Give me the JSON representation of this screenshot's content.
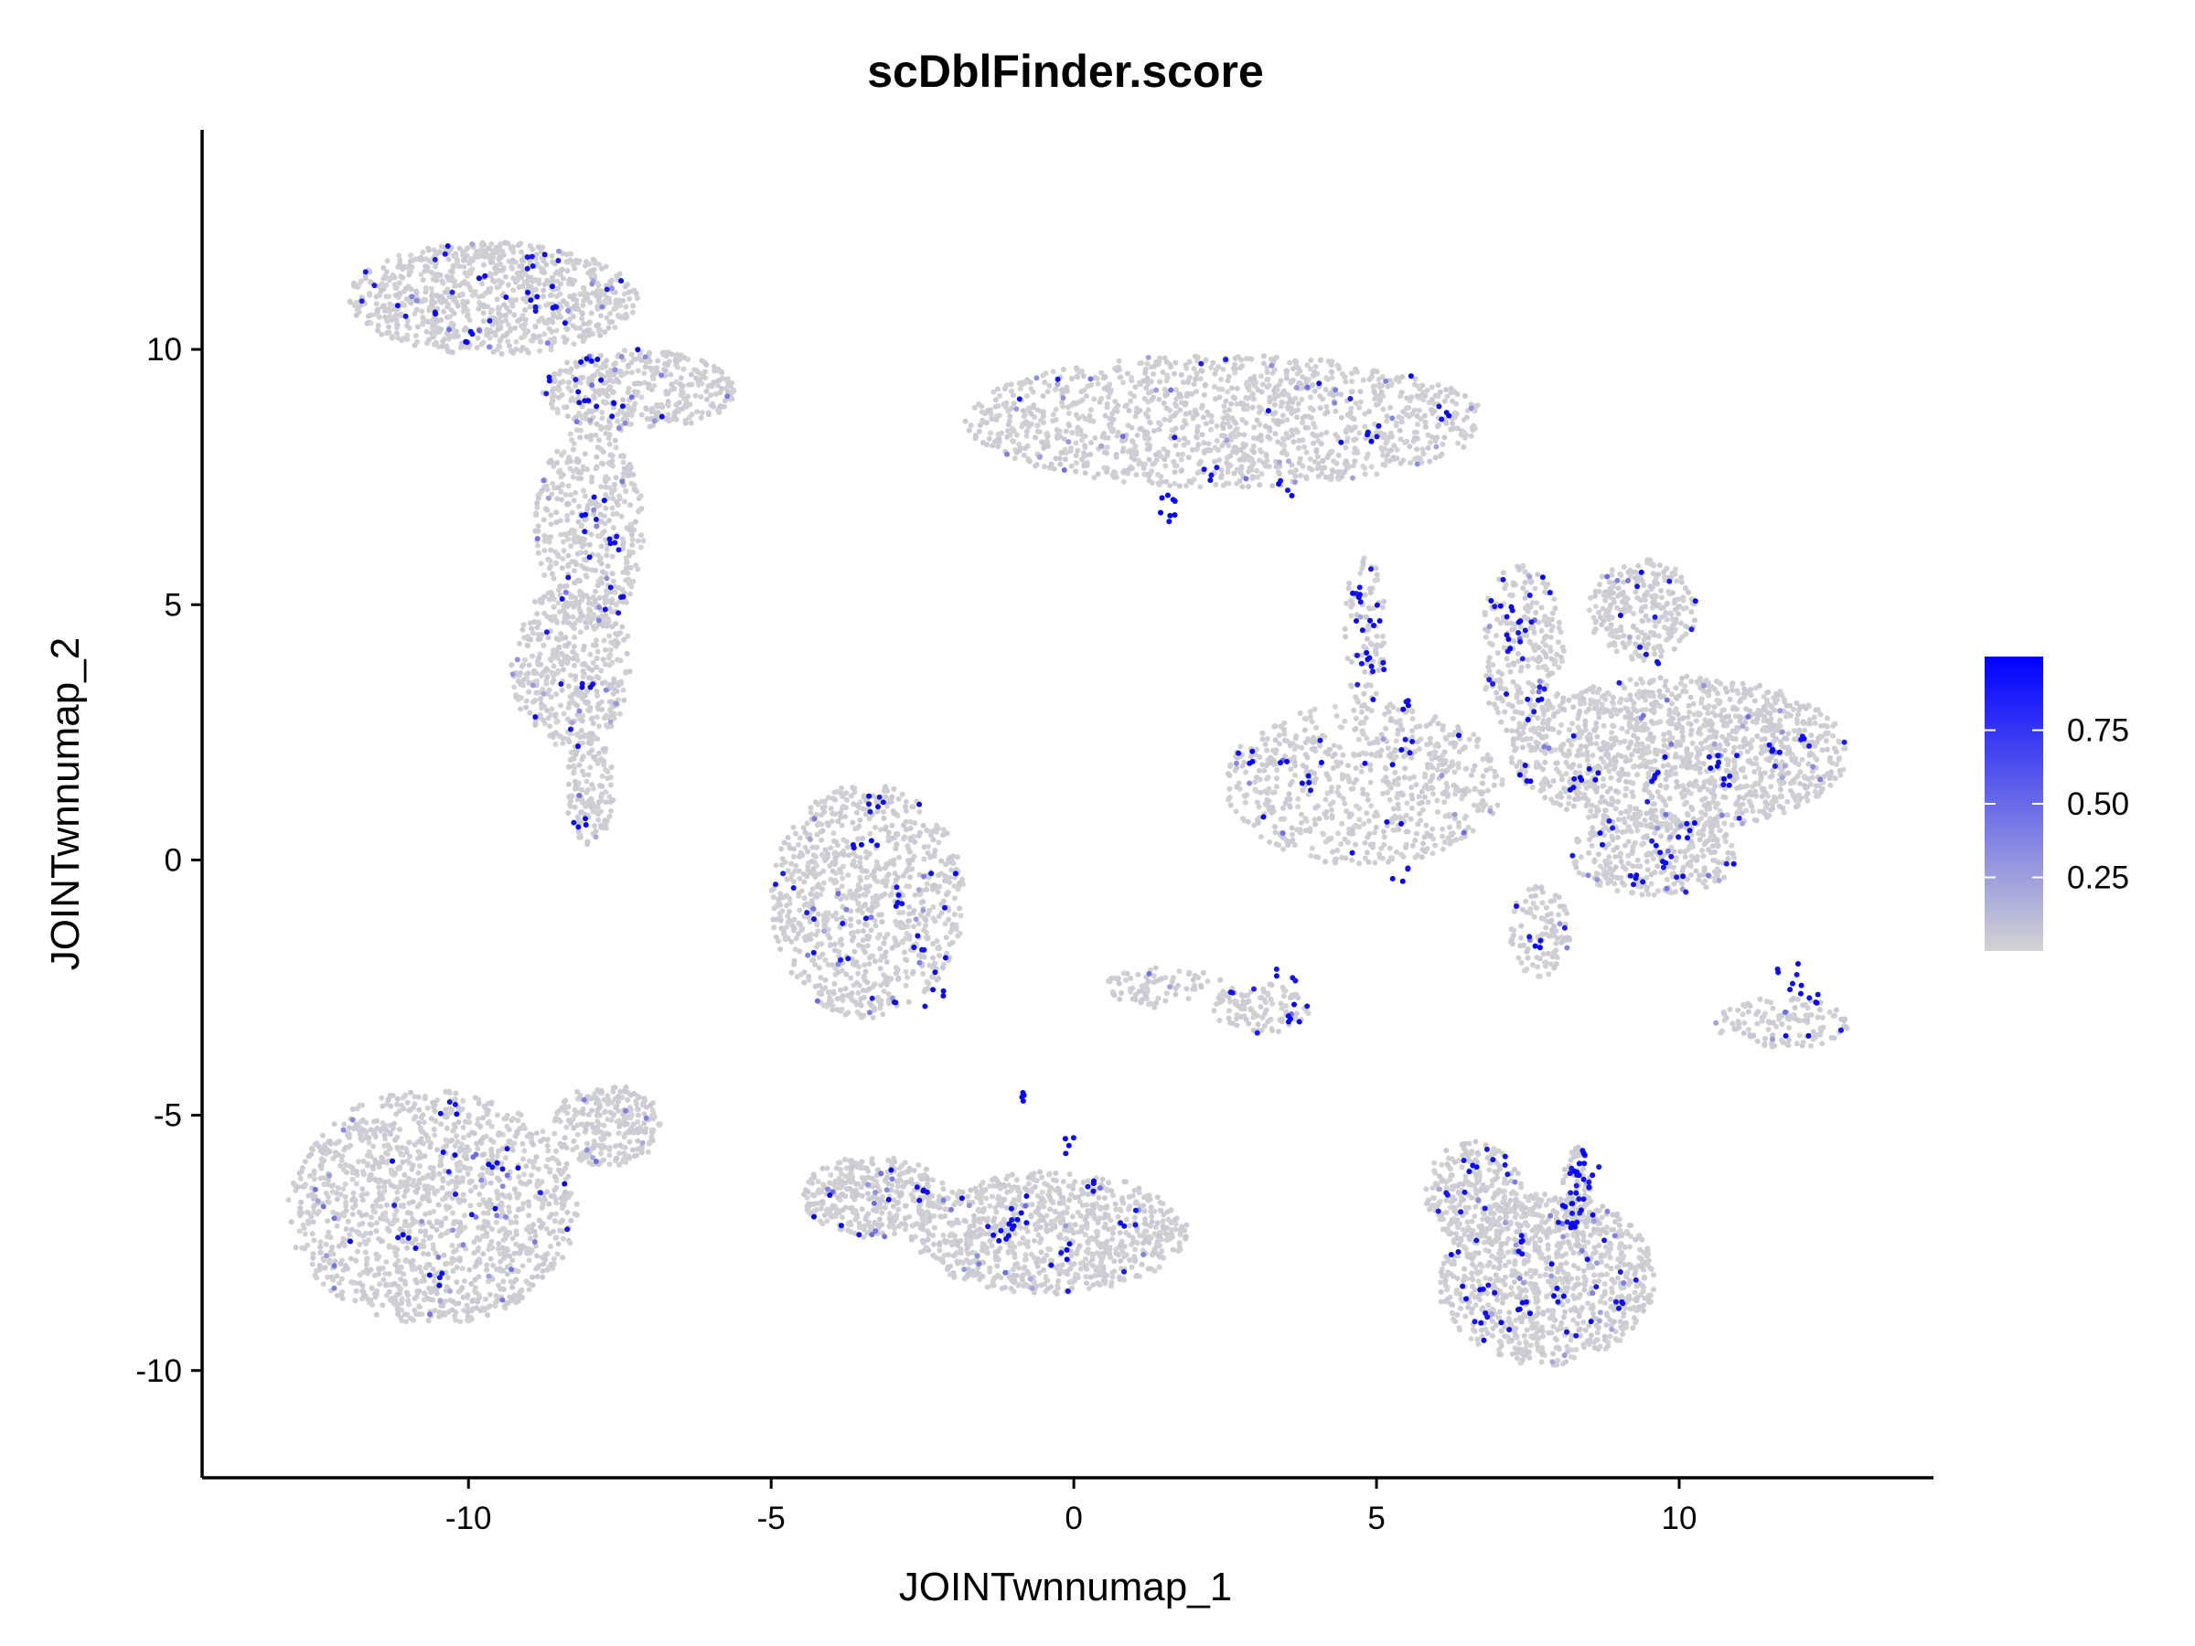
{
  "chart_data": {
    "type": "scatter",
    "title": "scDblFinder.score",
    "xlabel": "JOINTwnnumap_1",
    "ylabel": "JOINTwnnumap_2",
    "xlim": [
      -14.4,
      14.2
    ],
    "ylim": [
      -12.1,
      14.3
    ],
    "x_ticks": [
      -10,
      -5,
      0,
      5,
      10
    ],
    "x_tick_labels": [
      "-10",
      "-5",
      "0",
      "5",
      "10"
    ],
    "y_ticks": [
      -10,
      -5,
      0,
      5,
      10
    ],
    "y_tick_labels": [
      "-10",
      "-5",
      "0",
      "5",
      "10"
    ],
    "grid": false,
    "legend": {
      "type": "colorbar",
      "placement": "right",
      "min": 0.0,
      "max": 1.0,
      "low_color": "#d3d3d3",
      "high_color": "#0000ff",
      "ticks": [
        0.25,
        0.5,
        0.75
      ],
      "tick_labels": [
        "0.25",
        "0.50",
        "0.75"
      ]
    },
    "clusters": [
      {
        "cx": -9.6,
        "cy": 11.0,
        "rx": 2.4,
        "ry": 1.1,
        "n": 900,
        "doublet_frac": 0.02,
        "doublet_x": [
          -9.0,
          -8.0,
          -10.0
        ],
        "doublet_y": [
          11.0,
          9.0,
          10.3
        ]
      },
      {
        "cx": -7.2,
        "cy": 9.2,
        "rx": 1.6,
        "ry": 0.8,
        "n": 420,
        "doublet_frac": 0.02,
        "doublet_x": [
          -7.5,
          -8.0
        ],
        "doublet_y": [
          8.8,
          9.8
        ]
      },
      {
        "cx": -8.0,
        "cy": 6.5,
        "rx": 0.9,
        "ry": 2.0,
        "n": 420,
        "doublet_frac": 0.02,
        "doublet_x": [
          -8.0,
          -7.6
        ],
        "doublet_y": [
          6.6,
          6.2
        ]
      },
      {
        "cx": -8.3,
        "cy": 3.8,
        "rx": 1.0,
        "ry": 1.6,
        "n": 420,
        "doublet_frac": 0.02,
        "doublet_x": [
          -8.0,
          -7.6
        ],
        "doublet_y": [
          3.5,
          5.0
        ]
      },
      {
        "cx": -8.0,
        "cy": 1.4,
        "rx": 0.4,
        "ry": 1.1,
        "n": 140,
        "doublet_frac": 0.01,
        "doublet_x": [
          -8.2
        ],
        "doublet_y": [
          0.8
        ]
      },
      {
        "cx": 2.5,
        "cy": 8.6,
        "rx": 4.3,
        "ry": 1.3,
        "n": 1300,
        "doublet_frac": 0.01,
        "doublet_x": [
          1.5,
          1.6,
          2.2,
          3.5,
          5.0,
          6.2
        ],
        "doublet_y": [
          7.2,
          6.8,
          7.6,
          7.3,
          8.4,
          8.8
        ]
      },
      {
        "cx": -3.4,
        "cy": -0.8,
        "rx": 1.6,
        "ry": 2.3,
        "n": 900,
        "doublet_frac": 0.02,
        "doublet_x": [
          -3.5,
          -3.0,
          -2.6,
          -2.3,
          -3.3
        ],
        "doublet_y": [
          0.4,
          -0.8,
          -1.6,
          -2.7,
          1.2
        ]
      },
      {
        "cx": 4.8,
        "cy": 1.5,
        "rx": 2.3,
        "ry": 1.6,
        "n": 700,
        "doublet_frac": 0.02,
        "doublet_x": [
          2.8,
          4.9,
          5.6,
          5.5,
          5.4,
          3.8
        ],
        "doublet_y": [
          2.0,
          4.0,
          3.0,
          2.2,
          -0.3,
          1.5
        ]
      },
      {
        "cx": 4.8,
        "cy": 4.5,
        "rx": 0.35,
        "ry": 1.5,
        "n": 90,
        "doublet_frac": 0.1,
        "doublet_x": [
          4.7,
          4.9,
          5.0
        ],
        "doublet_y": [
          5.2,
          4.6,
          3.8
        ]
      },
      {
        "cx": 10.0,
        "cy": 2.1,
        "rx": 2.8,
        "ry": 1.5,
        "n": 1300,
        "doublet_frac": 0.01,
        "doublet_x": [
          7.5,
          8.5,
          9.5,
          10.5,
          11.5,
          12.0,
          8.2,
          10.8
        ],
        "doublet_y": [
          1.7,
          1.7,
          1.6,
          1.9,
          2.2,
          2.3,
          1.5,
          1.5
        ]
      },
      {
        "cx": 9.4,
        "cy": 4.9,
        "rx": 0.9,
        "ry": 1.0,
        "n": 280,
        "doublet_frac": 0.01,
        "doublet_x": [
          9.5
        ],
        "doublet_y": [
          4.0
        ]
      },
      {
        "cx": 7.4,
        "cy": 4.1,
        "rx": 0.7,
        "ry": 1.7,
        "n": 260,
        "doublet_frac": 0.06,
        "doublet_x": [
          7.1,
          7.3,
          7.6,
          7.2
        ],
        "doublet_y": [
          4.8,
          4.6,
          3.0,
          4.3
        ]
      },
      {
        "cx": 9.6,
        "cy": 0.1,
        "rx": 1.4,
        "ry": 0.8,
        "n": 320,
        "doublet_frac": 0.02,
        "doublet_x": [
          9.3,
          9.8,
          10.2
        ],
        "doublet_y": [
          -0.4,
          0.0,
          0.6
        ]
      },
      {
        "cx": 7.7,
        "cy": -1.4,
        "rx": 0.5,
        "ry": 0.9,
        "n": 110,
        "doublet_frac": 0.03,
        "doublet_x": [
          7.6
        ],
        "doublet_y": [
          -1.6
        ]
      },
      {
        "cx": 1.5,
        "cy": -2.5,
        "rx": 1.0,
        "ry": 0.4,
        "n": 80,
        "doublet_frac": 0.0,
        "doublet_x": [],
        "doublet_y": []
      },
      {
        "cx": 3.1,
        "cy": -2.9,
        "rx": 0.8,
        "ry": 0.5,
        "n": 110,
        "doublet_frac": 0.03,
        "doublet_x": [
          3.5,
          3.6
        ],
        "doublet_y": [
          -2.3,
          -3.0
        ]
      },
      {
        "cx": 11.7,
        "cy": -3.2,
        "rx": 1.1,
        "ry": 0.5,
        "n": 130,
        "doublet_frac": 0.03,
        "doublet_x": [
          12.0,
          12.2,
          11.8
        ],
        "doublet_y": [
          -2.5,
          -2.8,
          -2.2
        ]
      },
      {
        "cx": -10.6,
        "cy": -6.8,
        "rx": 2.4,
        "ry": 2.3,
        "n": 1400,
        "doublet_frac": 0.01,
        "doublet_x": [
          -10.3,
          -9.5,
          -11.0,
          -10.5
        ],
        "doublet_y": [
          -4.9,
          -6.0,
          -7.5,
          -8.2
        ]
      },
      {
        "cx": -7.7,
        "cy": -5.2,
        "rx": 0.9,
        "ry": 0.8,
        "n": 260,
        "doublet_frac": 0.0,
        "doublet_x": [],
        "doublet_y": []
      },
      {
        "cx": -0.4,
        "cy": -7.3,
        "rx": 2.3,
        "ry": 1.2,
        "n": 900,
        "doublet_frac": 0.01,
        "doublet_x": [
          -1.1,
          -1.2,
          -0.9,
          0.0,
          0.4,
          0.9,
          -0.9,
          -0.2
        ],
        "doublet_y": [
          -7.2,
          -7.4,
          -7.0,
          -5.6,
          -6.4,
          -7.0,
          -4.7,
          -7.8
        ]
      },
      {
        "cx": -3.3,
        "cy": -6.6,
        "rx": 1.2,
        "ry": 0.8,
        "n": 350,
        "doublet_frac": 0.01,
        "doublet_x": [
          -2.5
        ],
        "doublet_y": [
          -6.5
        ]
      },
      {
        "cx": 7.8,
        "cy": -8.2,
        "rx": 1.8,
        "ry": 1.7,
        "n": 1000,
        "doublet_frac": 0.02,
        "doublet_x": [
          6.8,
          7.5,
          8.0,
          6.9,
          7.3
        ],
        "doublet_y": [
          -8.5,
          -8.8,
          -8.5,
          -9.0,
          -7.6
        ]
      },
      {
        "cx": 6.6,
        "cy": -6.5,
        "rx": 0.8,
        "ry": 1.0,
        "n": 260,
        "doublet_frac": 0.02,
        "doublet_x": [
          6.6,
          7.0
        ],
        "doublet_y": [
          -6.0,
          -5.8
        ]
      },
      {
        "cx": 8.3,
        "cy": -6.5,
        "rx": 0.25,
        "ry": 0.9,
        "n": 80,
        "doublet_frac": 0.25,
        "doublet_x": [
          8.5,
          8.4,
          8.2,
          8.3
        ],
        "doublet_y": [
          -5.9,
          -6.2,
          -6.7,
          -7.2
        ]
      }
    ]
  }
}
